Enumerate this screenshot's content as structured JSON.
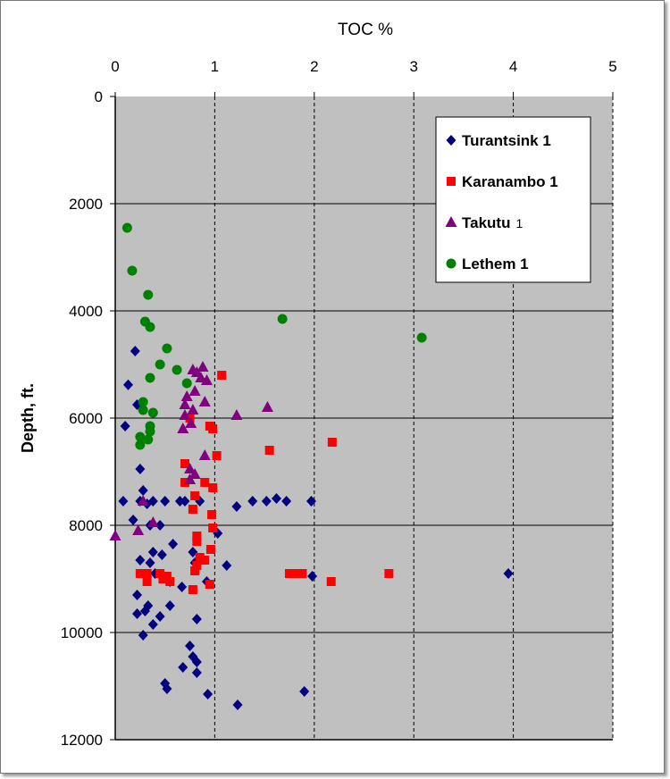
{
  "chart_data": {
    "type": "scatter",
    "xlabel": "TOC %",
    "ylabel": "Depth, ft.",
    "xlim": [
      0,
      5
    ],
    "ylim": [
      0,
      12000
    ],
    "y_inverted": true,
    "x_axis_position": "top",
    "xticks": [
      "0",
      "1",
      "2",
      "3",
      "4",
      "5"
    ],
    "yticks": [
      "0",
      "2000",
      "4000",
      "6000",
      "8000",
      "10000",
      "12000"
    ],
    "grid": "vertical dashed, horizontal solid",
    "plot_background": "#c0c0c0",
    "legend_position": "top-right",
    "series": [
      {
        "name": "Turantsink 1",
        "name_main": "Turantsink 1",
        "name_suffix": "",
        "marker": "diamond",
        "color": "#000080",
        "points": [
          [
            0.2,
            4750
          ],
          [
            0.13,
            5380
          ],
          [
            0.22,
            5750
          ],
          [
            0.1,
            6150
          ],
          [
            0.25,
            6950
          ],
          [
            0.28,
            7350
          ],
          [
            0.08,
            7550
          ],
          [
            0.25,
            7550
          ],
          [
            0.32,
            7600
          ],
          [
            0.38,
            7550
          ],
          [
            0.5,
            7550
          ],
          [
            0.65,
            7550
          ],
          [
            0.7,
            7550
          ],
          [
            0.85,
            7550
          ],
          [
            1.22,
            7650
          ],
          [
            1.38,
            7550
          ],
          [
            1.52,
            7550
          ],
          [
            1.62,
            7500
          ],
          [
            1.72,
            7550
          ],
          [
            1.97,
            7550
          ],
          [
            0.18,
            7900
          ],
          [
            0.45,
            8000
          ],
          [
            0.35,
            8000
          ],
          [
            1.03,
            8150
          ],
          [
            0.58,
            8350
          ],
          [
            0.38,
            8500
          ],
          [
            0.47,
            8550
          ],
          [
            0.78,
            8500
          ],
          [
            0.25,
            8650
          ],
          [
            0.35,
            8700
          ],
          [
            0.8,
            8700
          ],
          [
            1.12,
            8750
          ],
          [
            0.4,
            8900
          ],
          [
            1.98,
            8950
          ],
          [
            3.95,
            8900
          ],
          [
            0.92,
            9050
          ],
          [
            0.55,
            9050
          ],
          [
            0.67,
            9150
          ],
          [
            0.22,
            9300
          ],
          [
            0.33,
            9500
          ],
          [
            0.55,
            9500
          ],
          [
            0.22,
            9650
          ],
          [
            0.3,
            9600
          ],
          [
            0.45,
            9700
          ],
          [
            0.38,
            9850
          ],
          [
            0.82,
            9750
          ],
          [
            0.28,
            10050
          ],
          [
            0.75,
            10250
          ],
          [
            0.78,
            10450
          ],
          [
            0.82,
            10550
          ],
          [
            0.68,
            10650
          ],
          [
            0.82,
            10750
          ],
          [
            0.5,
            10950
          ],
          [
            0.52,
            11050
          ],
          [
            0.93,
            11150
          ],
          [
            1.9,
            11100
          ],
          [
            1.23,
            11350
          ]
        ]
      },
      {
        "name": "Karanambo 1",
        "name_main": "Karanambo 1",
        "name_suffix": "",
        "marker": "square",
        "color": "#ff0000",
        "points": [
          [
            1.07,
            5200
          ],
          [
            0.95,
            6150
          ],
          [
            0.98,
            6200
          ],
          [
            0.75,
            6000
          ],
          [
            2.18,
            6450
          ],
          [
            1.55,
            6600
          ],
          [
            1.02,
            6700
          ],
          [
            0.7,
            6850
          ],
          [
            0.7,
            7200
          ],
          [
            0.9,
            7200
          ],
          [
            0.98,
            7300
          ],
          [
            0.8,
            7450
          ],
          [
            0.78,
            7700
          ],
          [
            0.97,
            7800
          ],
          [
            0.98,
            8050
          ],
          [
            0.82,
            8200
          ],
          [
            0.82,
            8300
          ],
          [
            0.96,
            8450
          ],
          [
            0.85,
            8600
          ],
          [
            0.9,
            8650
          ],
          [
            0.82,
            8750
          ],
          [
            0.8,
            8850
          ],
          [
            0.25,
            8900
          ],
          [
            0.32,
            8900
          ],
          [
            0.45,
            8900
          ],
          [
            0.52,
            8950
          ],
          [
            0.32,
            9050
          ],
          [
            0.48,
            9000
          ],
          [
            0.55,
            9050
          ],
          [
            0.95,
            9100
          ],
          [
            0.78,
            9200
          ],
          [
            1.75,
            8900
          ],
          [
            1.82,
            8900
          ],
          [
            1.88,
            8900
          ],
          [
            2.17,
            9050
          ],
          [
            2.75,
            8900
          ]
        ]
      },
      {
        "name": "Takutu 1",
        "name_main": "Takutu",
        "name_suffix": "1",
        "marker": "triangle",
        "color": "#800080",
        "points": [
          [
            0.78,
            5100
          ],
          [
            0.88,
            5050
          ],
          [
            0.82,
            5150
          ],
          [
            0.86,
            5250
          ],
          [
            0.92,
            5300
          ],
          [
            0.72,
            5600
          ],
          [
            0.8,
            5500
          ],
          [
            0.9,
            5700
          ],
          [
            0.7,
            5750
          ],
          [
            0.78,
            5850
          ],
          [
            0.7,
            5950
          ],
          [
            1.22,
            5950
          ],
          [
            1.53,
            5800
          ],
          [
            0.76,
            6100
          ],
          [
            0.68,
            6200
          ],
          [
            0.9,
            6700
          ],
          [
            0.75,
            6950
          ],
          [
            0.8,
            7050
          ],
          [
            0.75,
            7150
          ],
          [
            0.28,
            7550
          ],
          [
            0.38,
            7950
          ],
          [
            0.23,
            8100
          ],
          [
            0.0,
            8200
          ]
        ]
      },
      {
        "name": "Lethem 1",
        "name_main": "Lethem 1",
        "name_suffix": "",
        "marker": "circle",
        "color": "#008000",
        "points": [
          [
            0.12,
            2450
          ],
          [
            0.17,
            3250
          ],
          [
            0.33,
            3700
          ],
          [
            0.3,
            4200
          ],
          [
            0.35,
            4300
          ],
          [
            1.68,
            4150
          ],
          [
            3.08,
            4500
          ],
          [
            0.52,
            4700
          ],
          [
            0.45,
            5000
          ],
          [
            0.62,
            5100
          ],
          [
            0.72,
            5350
          ],
          [
            0.35,
            5250
          ],
          [
            0.28,
            5700
          ],
          [
            0.28,
            5850
          ],
          [
            0.38,
            5900
          ],
          [
            0.35,
            6150
          ],
          [
            0.35,
            6250
          ],
          [
            0.25,
            6350
          ],
          [
            0.33,
            6400
          ],
          [
            0.25,
            6500
          ]
        ]
      }
    ]
  }
}
